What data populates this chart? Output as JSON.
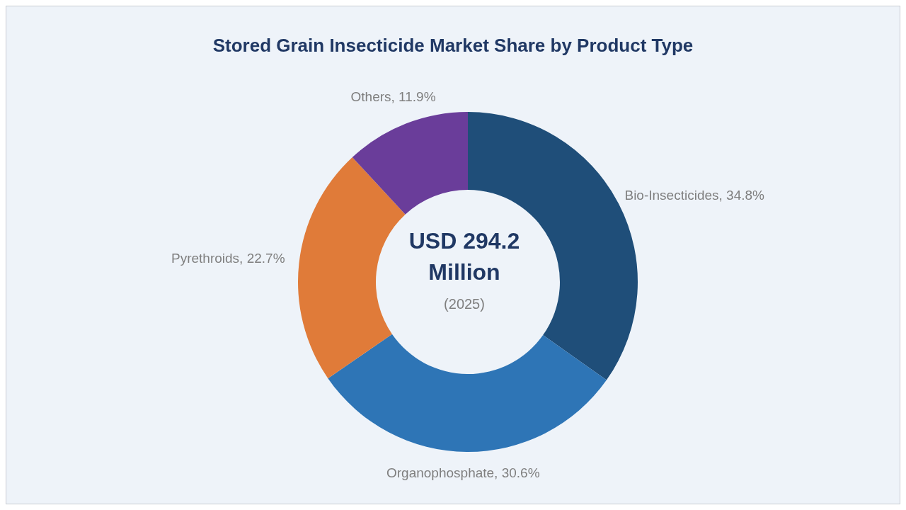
{
  "chart_data": {
    "type": "donut",
    "title": "Stored Grain Insecticide Market Share by Product Type",
    "categories": [
      "Bio-Insecticides",
      "Organophosphate",
      "Pyrethroids",
      "Others"
    ],
    "values": [
      34.8,
      30.6,
      22.7,
      11.9
    ],
    "colors": [
      "#1f4e79",
      "#2e75b6",
      "#e07b39",
      "#6a3d9a"
    ],
    "value_labels": [
      "34.8%",
      "30.6%",
      "22.7%",
      "11.9%"
    ],
    "annotations": [
      "USD 294.2 Million",
      "(2025)"
    ],
    "legend": false
  }
}
